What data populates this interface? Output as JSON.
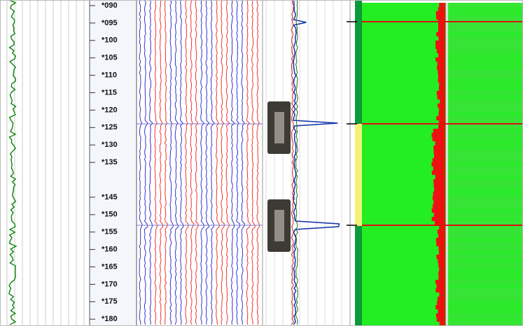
{
  "depth_track": {
    "labels": [
      "*090",
      "*095",
      "*100",
      "*105",
      "*110",
      "*115",
      "*120",
      "*125",
      "*130",
      "*135",
      "*145",
      "*150",
      "*155",
      "*160",
      "*165",
      "*170",
      "*175",
      "*180"
    ]
  }
}
